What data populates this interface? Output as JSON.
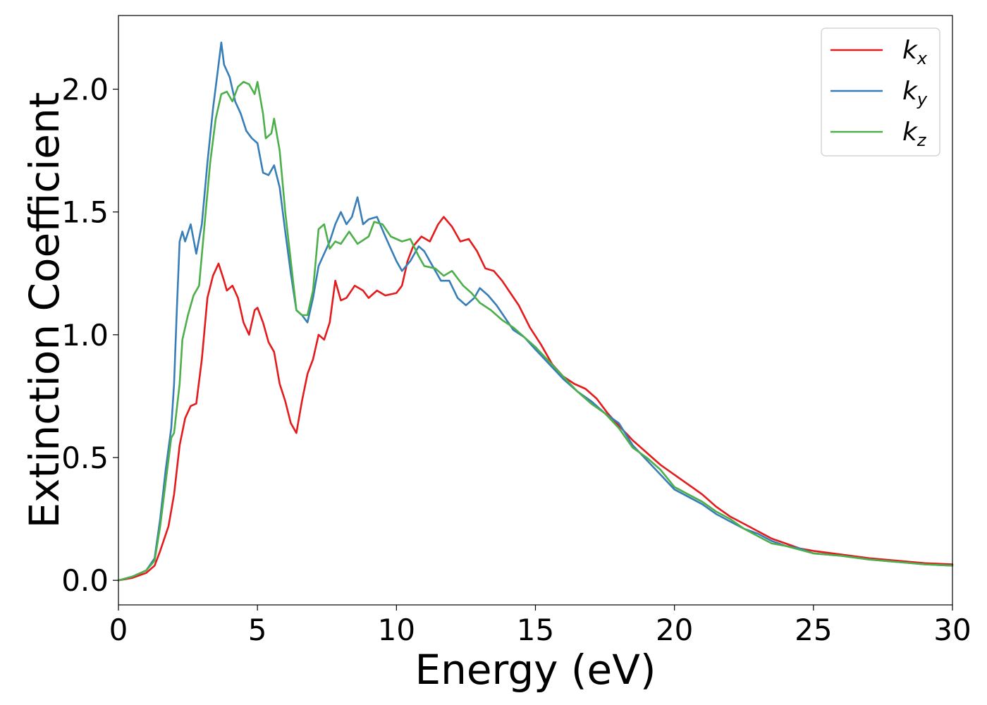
{
  "chart_data": {
    "type": "line",
    "title": "",
    "xlabel": "Energy (eV)",
    "ylabel": "Extinction Coefficient",
    "xlim": [
      0,
      30
    ],
    "ylim": [
      -0.1,
      2.3
    ],
    "xticks": [
      0,
      5,
      10,
      15,
      20,
      25,
      30
    ],
    "xtick_labels": [
      "0",
      "5",
      "10",
      "15",
      "20",
      "25",
      "30"
    ],
    "yticks": [
      0.0,
      0.5,
      1.0,
      1.5,
      2.0
    ],
    "ytick_labels": [
      "0.0",
      "0.5",
      "1.0",
      "1.5",
      "2.0"
    ],
    "grid": false,
    "legend_position": "top-right",
    "series": [
      {
        "name": "k_x",
        "legend_base": "k",
        "legend_sub": "x",
        "color": "#e41a1c",
        "points": [
          [
            0,
            0
          ],
          [
            0.5,
            0.01
          ],
          [
            1.0,
            0.03
          ],
          [
            1.3,
            0.06
          ],
          [
            1.5,
            0.12
          ],
          [
            1.8,
            0.22
          ],
          [
            2.0,
            0.35
          ],
          [
            2.2,
            0.55
          ],
          [
            2.4,
            0.66
          ],
          [
            2.6,
            0.71
          ],
          [
            2.8,
            0.72
          ],
          [
            3.0,
            0.9
          ],
          [
            3.2,
            1.15
          ],
          [
            3.4,
            1.24
          ],
          [
            3.6,
            1.29
          ],
          [
            3.8,
            1.22
          ],
          [
            3.9,
            1.18
          ],
          [
            4.1,
            1.2
          ],
          [
            4.3,
            1.15
          ],
          [
            4.5,
            1.05
          ],
          [
            4.7,
            1.0
          ],
          [
            4.9,
            1.1
          ],
          [
            5.0,
            1.11
          ],
          [
            5.2,
            1.05
          ],
          [
            5.4,
            0.97
          ],
          [
            5.6,
            0.93
          ],
          [
            5.8,
            0.8
          ],
          [
            6.0,
            0.73
          ],
          [
            6.2,
            0.64
          ],
          [
            6.4,
            0.6
          ],
          [
            6.6,
            0.73
          ],
          [
            6.8,
            0.84
          ],
          [
            7.0,
            0.9
          ],
          [
            7.2,
            1.0
          ],
          [
            7.4,
            0.98
          ],
          [
            7.6,
            1.05
          ],
          [
            7.8,
            1.22
          ],
          [
            8.0,
            1.14
          ],
          [
            8.2,
            1.15
          ],
          [
            8.5,
            1.2
          ],
          [
            8.8,
            1.18
          ],
          [
            9.0,
            1.15
          ],
          [
            9.3,
            1.18
          ],
          [
            9.6,
            1.16
          ],
          [
            10.0,
            1.17
          ],
          [
            10.2,
            1.2
          ],
          [
            10.4,
            1.3
          ],
          [
            10.6,
            1.36
          ],
          [
            10.9,
            1.4
          ],
          [
            11.2,
            1.38
          ],
          [
            11.5,
            1.45
          ],
          [
            11.7,
            1.48
          ],
          [
            12.0,
            1.44
          ],
          [
            12.3,
            1.38
          ],
          [
            12.6,
            1.39
          ],
          [
            12.9,
            1.34
          ],
          [
            13.2,
            1.27
          ],
          [
            13.5,
            1.26
          ],
          [
            13.8,
            1.22
          ],
          [
            14.1,
            1.17
          ],
          [
            14.4,
            1.12
          ],
          [
            14.8,
            1.03
          ],
          [
            15.2,
            0.96
          ],
          [
            15.6,
            0.88
          ],
          [
            16.0,
            0.83
          ],
          [
            16.4,
            0.8
          ],
          [
            16.8,
            0.78
          ],
          [
            17.2,
            0.74
          ],
          [
            17.6,
            0.68
          ],
          [
            18.0,
            0.63
          ],
          [
            18.5,
            0.57
          ],
          [
            19.0,
            0.52
          ],
          [
            19.5,
            0.47
          ],
          [
            20.0,
            0.43
          ],
          [
            20.5,
            0.39
          ],
          [
            21.0,
            0.35
          ],
          [
            21.5,
            0.3
          ],
          [
            22.0,
            0.26
          ],
          [
            22.5,
            0.23
          ],
          [
            23.0,
            0.2
          ],
          [
            23.5,
            0.17
          ],
          [
            24.0,
            0.15
          ],
          [
            24.5,
            0.13
          ],
          [
            25.0,
            0.12
          ],
          [
            26.0,
            0.105
          ],
          [
            27.0,
            0.09
          ],
          [
            28.0,
            0.08
          ],
          [
            29.0,
            0.07
          ],
          [
            30.0,
            0.065
          ]
        ]
      },
      {
        "name": "k_y",
        "legend_base": "k",
        "legend_sub": "y",
        "color": "#377eb8",
        "points": [
          [
            0,
            0
          ],
          [
            0.5,
            0.015
          ],
          [
            1.0,
            0.04
          ],
          [
            1.3,
            0.09
          ],
          [
            1.5,
            0.25
          ],
          [
            1.7,
            0.45
          ],
          [
            1.9,
            0.62
          ],
          [
            2.0,
            0.8
          ],
          [
            2.1,
            1.1
          ],
          [
            2.2,
            1.38
          ],
          [
            2.3,
            1.42
          ],
          [
            2.4,
            1.38
          ],
          [
            2.6,
            1.45
          ],
          [
            2.8,
            1.33
          ],
          [
            3.0,
            1.45
          ],
          [
            3.2,
            1.7
          ],
          [
            3.4,
            1.92
          ],
          [
            3.6,
            2.1
          ],
          [
            3.7,
            2.19
          ],
          [
            3.8,
            2.1
          ],
          [
            4.0,
            2.05
          ],
          [
            4.2,
            1.95
          ],
          [
            4.4,
            1.9
          ],
          [
            4.6,
            1.83
          ],
          [
            4.8,
            1.8
          ],
          [
            5.0,
            1.78
          ],
          [
            5.2,
            1.66
          ],
          [
            5.4,
            1.65
          ],
          [
            5.6,
            1.69
          ],
          [
            5.8,
            1.6
          ],
          [
            6.0,
            1.42
          ],
          [
            6.2,
            1.25
          ],
          [
            6.4,
            1.1
          ],
          [
            6.6,
            1.08
          ],
          [
            6.8,
            1.05
          ],
          [
            7.0,
            1.15
          ],
          [
            7.2,
            1.28
          ],
          [
            7.4,
            1.33
          ],
          [
            7.6,
            1.38
          ],
          [
            7.8,
            1.45
          ],
          [
            8.0,
            1.5
          ],
          [
            8.2,
            1.45
          ],
          [
            8.4,
            1.48
          ],
          [
            8.6,
            1.56
          ],
          [
            8.8,
            1.45
          ],
          [
            9.0,
            1.47
          ],
          [
            9.3,
            1.48
          ],
          [
            9.6,
            1.4
          ],
          [
            9.8,
            1.35
          ],
          [
            10.0,
            1.3
          ],
          [
            10.2,
            1.26
          ],
          [
            10.5,
            1.3
          ],
          [
            10.8,
            1.36
          ],
          [
            11.0,
            1.34
          ],
          [
            11.3,
            1.28
          ],
          [
            11.6,
            1.22
          ],
          [
            11.9,
            1.22
          ],
          [
            12.2,
            1.15
          ],
          [
            12.5,
            1.12
          ],
          [
            12.8,
            1.15
          ],
          [
            13.0,
            1.19
          ],
          [
            13.3,
            1.16
          ],
          [
            13.6,
            1.12
          ],
          [
            13.9,
            1.07
          ],
          [
            14.2,
            1.02
          ],
          [
            14.6,
            0.99
          ],
          [
            15.0,
            0.94
          ],
          [
            15.5,
            0.88
          ],
          [
            16.0,
            0.82
          ],
          [
            16.5,
            0.77
          ],
          [
            17.0,
            0.73
          ],
          [
            17.5,
            0.68
          ],
          [
            18.0,
            0.64
          ],
          [
            18.5,
            0.55
          ],
          [
            19.0,
            0.49
          ],
          [
            19.5,
            0.43
          ],
          [
            20.0,
            0.37
          ],
          [
            20.5,
            0.34
          ],
          [
            21.0,
            0.31
          ],
          [
            21.5,
            0.27
          ],
          [
            22.0,
            0.24
          ],
          [
            22.5,
            0.21
          ],
          [
            23.0,
            0.19
          ],
          [
            23.5,
            0.16
          ],
          [
            24.0,
            0.14
          ],
          [
            24.5,
            0.13
          ],
          [
            25.0,
            0.11
          ],
          [
            26.0,
            0.1
          ],
          [
            27.0,
            0.085
          ],
          [
            28.0,
            0.075
          ],
          [
            29.0,
            0.065
          ],
          [
            30.0,
            0.06
          ]
        ]
      },
      {
        "name": "k_z",
        "legend_base": "k",
        "legend_sub": "z",
        "color": "#4daf4a",
        "points": [
          [
            0,
            0
          ],
          [
            0.5,
            0.015
          ],
          [
            1.0,
            0.04
          ],
          [
            1.3,
            0.08
          ],
          [
            1.5,
            0.22
          ],
          [
            1.7,
            0.4
          ],
          [
            1.9,
            0.58
          ],
          [
            2.0,
            0.6
          ],
          [
            2.2,
            0.8
          ],
          [
            2.3,
            0.98
          ],
          [
            2.5,
            1.08
          ],
          [
            2.7,
            1.16
          ],
          [
            2.9,
            1.2
          ],
          [
            3.1,
            1.45
          ],
          [
            3.3,
            1.7
          ],
          [
            3.5,
            1.88
          ],
          [
            3.7,
            1.98
          ],
          [
            3.9,
            1.99
          ],
          [
            4.1,
            1.95
          ],
          [
            4.3,
            2.01
          ],
          [
            4.5,
            2.03
          ],
          [
            4.7,
            2.02
          ],
          [
            4.9,
            1.98
          ],
          [
            5.0,
            2.03
          ],
          [
            5.2,
            1.9
          ],
          [
            5.3,
            1.8
          ],
          [
            5.5,
            1.82
          ],
          [
            5.6,
            1.88
          ],
          [
            5.8,
            1.75
          ],
          [
            6.0,
            1.5
          ],
          [
            6.2,
            1.3
          ],
          [
            6.4,
            1.1
          ],
          [
            6.6,
            1.08
          ],
          [
            6.8,
            1.08
          ],
          [
            7.0,
            1.18
          ],
          [
            7.2,
            1.43
          ],
          [
            7.4,
            1.45
          ],
          [
            7.6,
            1.35
          ],
          [
            7.8,
            1.38
          ],
          [
            8.0,
            1.37
          ],
          [
            8.3,
            1.42
          ],
          [
            8.6,
            1.37
          ],
          [
            9.0,
            1.4
          ],
          [
            9.2,
            1.46
          ],
          [
            9.5,
            1.45
          ],
          [
            9.8,
            1.4
          ],
          [
            10.2,
            1.38
          ],
          [
            10.5,
            1.39
          ],
          [
            10.8,
            1.32
          ],
          [
            11.0,
            1.28
          ],
          [
            11.4,
            1.27
          ],
          [
            11.7,
            1.24
          ],
          [
            12.0,
            1.26
          ],
          [
            12.4,
            1.2
          ],
          [
            12.7,
            1.17
          ],
          [
            13.0,
            1.13
          ],
          [
            13.4,
            1.1
          ],
          [
            13.8,
            1.06
          ],
          [
            14.2,
            1.03
          ],
          [
            14.6,
            0.99
          ],
          [
            15.0,
            0.95
          ],
          [
            15.5,
            0.89
          ],
          [
            16.0,
            0.83
          ],
          [
            16.5,
            0.77
          ],
          [
            17.0,
            0.72
          ],
          [
            17.5,
            0.68
          ],
          [
            18.0,
            0.62
          ],
          [
            18.5,
            0.54
          ],
          [
            19.0,
            0.5
          ],
          [
            19.5,
            0.45
          ],
          [
            20.0,
            0.38
          ],
          [
            20.5,
            0.35
          ],
          [
            21.0,
            0.32
          ],
          [
            21.5,
            0.28
          ],
          [
            22.0,
            0.25
          ],
          [
            22.5,
            0.21
          ],
          [
            23.0,
            0.18
          ],
          [
            23.5,
            0.15
          ],
          [
            24.0,
            0.14
          ],
          [
            24.5,
            0.125
          ],
          [
            25.0,
            0.11
          ],
          [
            26.0,
            0.1
          ],
          [
            27.0,
            0.085
          ],
          [
            28.0,
            0.075
          ],
          [
            29.0,
            0.065
          ],
          [
            30.0,
            0.06
          ]
        ]
      }
    ]
  }
}
